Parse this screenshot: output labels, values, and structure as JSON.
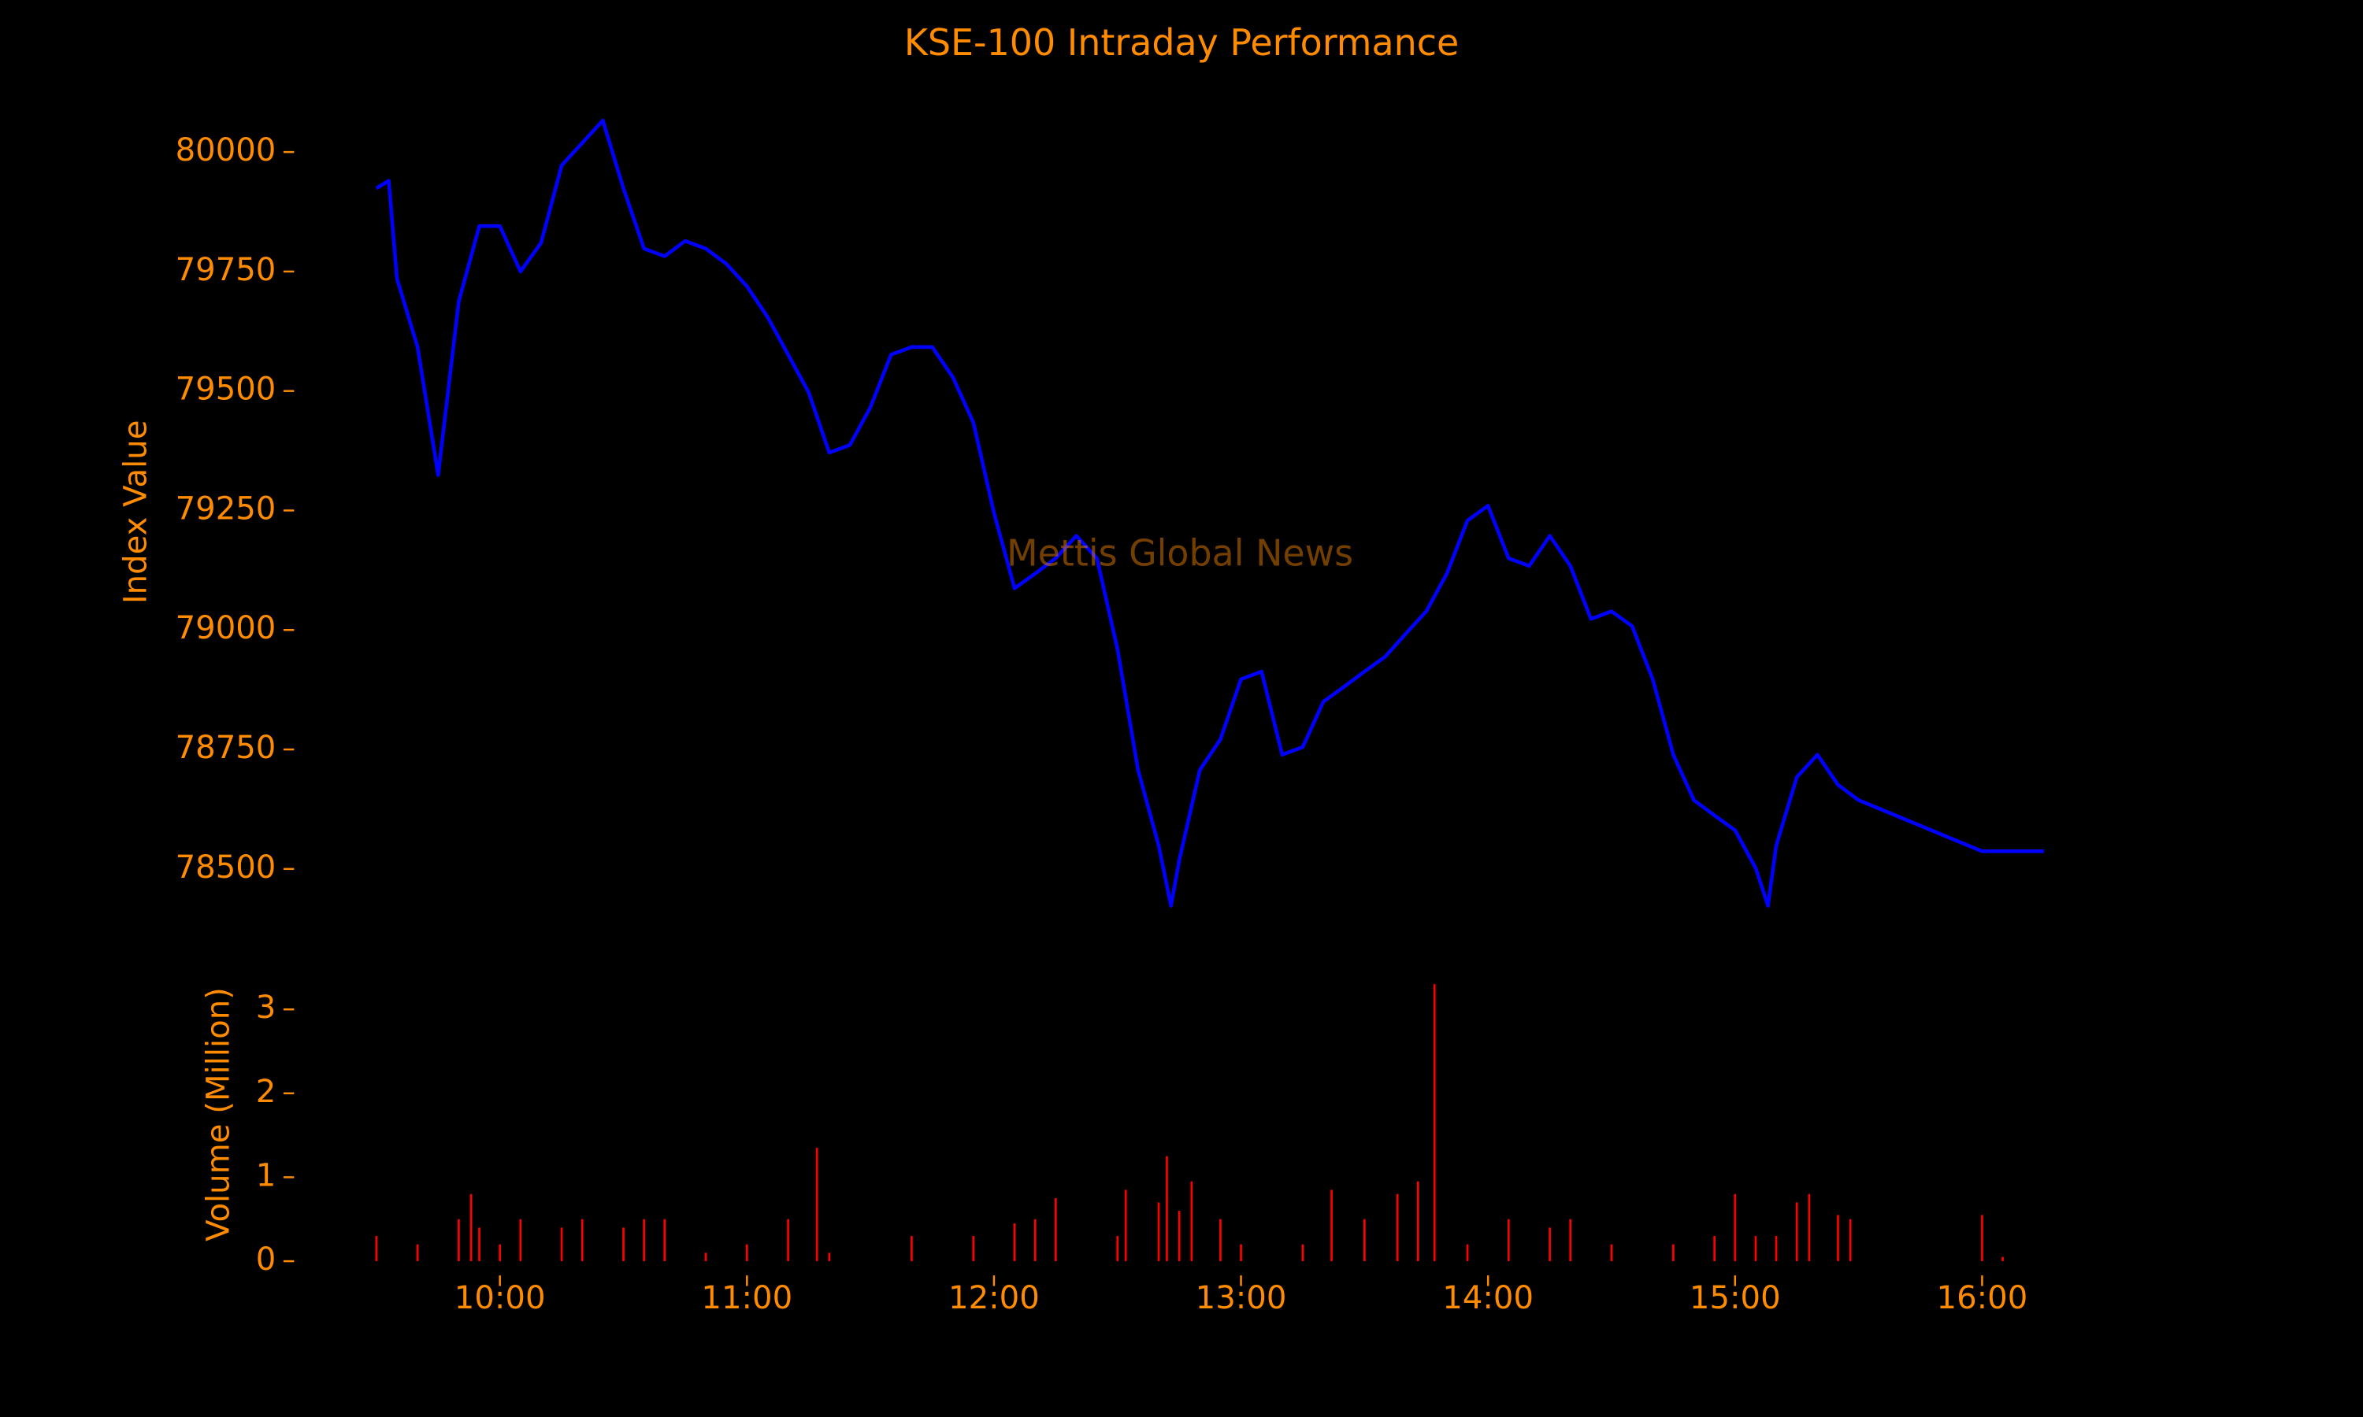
{
  "chart_data": [
    {
      "type": "line",
      "title": "KSE-100 Intraday Performance",
      "ylabel": "Index Value",
      "annotation": "Mettis Global News",
      "color": "#0000ff",
      "x": [
        "09:30",
        "09:33",
        "09:35",
        "09:40",
        "09:45",
        "09:50",
        "09:55",
        "10:00",
        "10:05",
        "10:10",
        "10:15",
        "10:20",
        "10:25",
        "10:30",
        "10:35",
        "10:40",
        "10:45",
        "10:50",
        "10:55",
        "11:00",
        "11:05",
        "11:10",
        "11:15",
        "11:20",
        "11:25",
        "11:30",
        "11:35",
        "11:40",
        "11:45",
        "11:50",
        "11:55",
        "12:00",
        "12:05",
        "12:10",
        "12:15",
        "12:20",
        "12:25",
        "12:30",
        "12:35",
        "12:40",
        "12:43",
        "12:45",
        "12:50",
        "12:55",
        "13:00",
        "13:05",
        "13:10",
        "13:15",
        "13:20",
        "13:25",
        "13:30",
        "13:35",
        "13:40",
        "13:45",
        "13:50",
        "13:55",
        "14:00",
        "14:05",
        "14:10",
        "14:15",
        "14:20",
        "14:25",
        "14:30",
        "14:35",
        "14:40",
        "14:45",
        "14:50",
        "14:55",
        "15:00",
        "15:05",
        "15:08",
        "15:10",
        "15:15",
        "15:20",
        "15:25",
        "15:30",
        "16:00",
        "16:15"
      ],
      "values": [
        79924,
        79940,
        79735,
        79592,
        79324,
        79687,
        79845,
        79845,
        79750,
        79810,
        79972,
        80019,
        80066,
        79924,
        79798,
        79782,
        79814,
        79798,
        79766,
        79719,
        79655,
        79576,
        79497,
        79371,
        79387,
        79466,
        79576,
        79592,
        79592,
        79529,
        79434,
        79245,
        79087,
        79118,
        79150,
        79197,
        79150,
        78960,
        78707,
        78549,
        78423,
        78518,
        78707,
        78771,
        78897,
        78913,
        78739,
        78755,
        78850,
        78881,
        78913,
        78944,
        78992,
        79039,
        79118,
        79229,
        79260,
        79150,
        79134,
        79197,
        79134,
        79023,
        79039,
        79008,
        78897,
        78739,
        78644,
        78612,
        78581,
        78502,
        78423,
        78549,
        78692,
        78739,
        78676,
        78644,
        78537,
        78537
      ],
      "xlim": [
        "09:10",
        "16:35"
      ],
      "ylim": [
        78330,
        80170
      ],
      "yticks": [
        78500,
        78750,
        79000,
        79250,
        79500,
        79750,
        80000
      ]
    },
    {
      "type": "bar",
      "ylabel": "Volume (Million)",
      "color": "#ff0000",
      "x": [
        "09:30",
        "09:40",
        "09:50",
        "09:53",
        "09:55",
        "10:00",
        "10:05",
        "10:15",
        "10:20",
        "10:30",
        "10:35",
        "10:40",
        "10:50",
        "11:00",
        "11:10",
        "11:17",
        "11:20",
        "11:40",
        "11:55",
        "12:05",
        "12:10",
        "12:15",
        "12:30",
        "12:32",
        "12:40",
        "12:42",
        "12:45",
        "12:48",
        "12:55",
        "13:00",
        "13:15",
        "13:22",
        "13:30",
        "13:38",
        "13:43",
        "13:47",
        "13:55",
        "14:05",
        "14:15",
        "14:20",
        "14:30",
        "14:45",
        "14:55",
        "15:00",
        "15:05",
        "15:10",
        "15:15",
        "15:18",
        "15:25",
        "15:28",
        "16:00",
        "16:05"
      ],
      "values": [
        0.3,
        0.2,
        0.5,
        0.8,
        0.4,
        0.2,
        0.5,
        0.4,
        0.5,
        0.4,
        0.5,
        0.5,
        0.1,
        0.2,
        0.5,
        1.35,
        0.1,
        0.3,
        0.3,
        0.45,
        0.5,
        0.75,
        0.3,
        0.85,
        0.7,
        1.25,
        0.6,
        0.95,
        0.5,
        0.2,
        0.2,
        0.85,
        0.5,
        0.8,
        0.95,
        3.3,
        0.2,
        0.5,
        0.4,
        0.5,
        0.2,
        0.2,
        0.3,
        0.8,
        0.3,
        0.3,
        0.7,
        0.8,
        0.55,
        0.5,
        0.55,
        0.05
      ],
      "xlim": [
        "09:10",
        "16:35"
      ],
      "ylim": [
        -0.17,
        3.49
      ],
      "yticks": [
        0,
        1,
        2,
        3
      ],
      "xticks": [
        "10:00",
        "11:00",
        "12:00",
        "13:00",
        "14:00",
        "15:00",
        "16:00"
      ]
    }
  ]
}
